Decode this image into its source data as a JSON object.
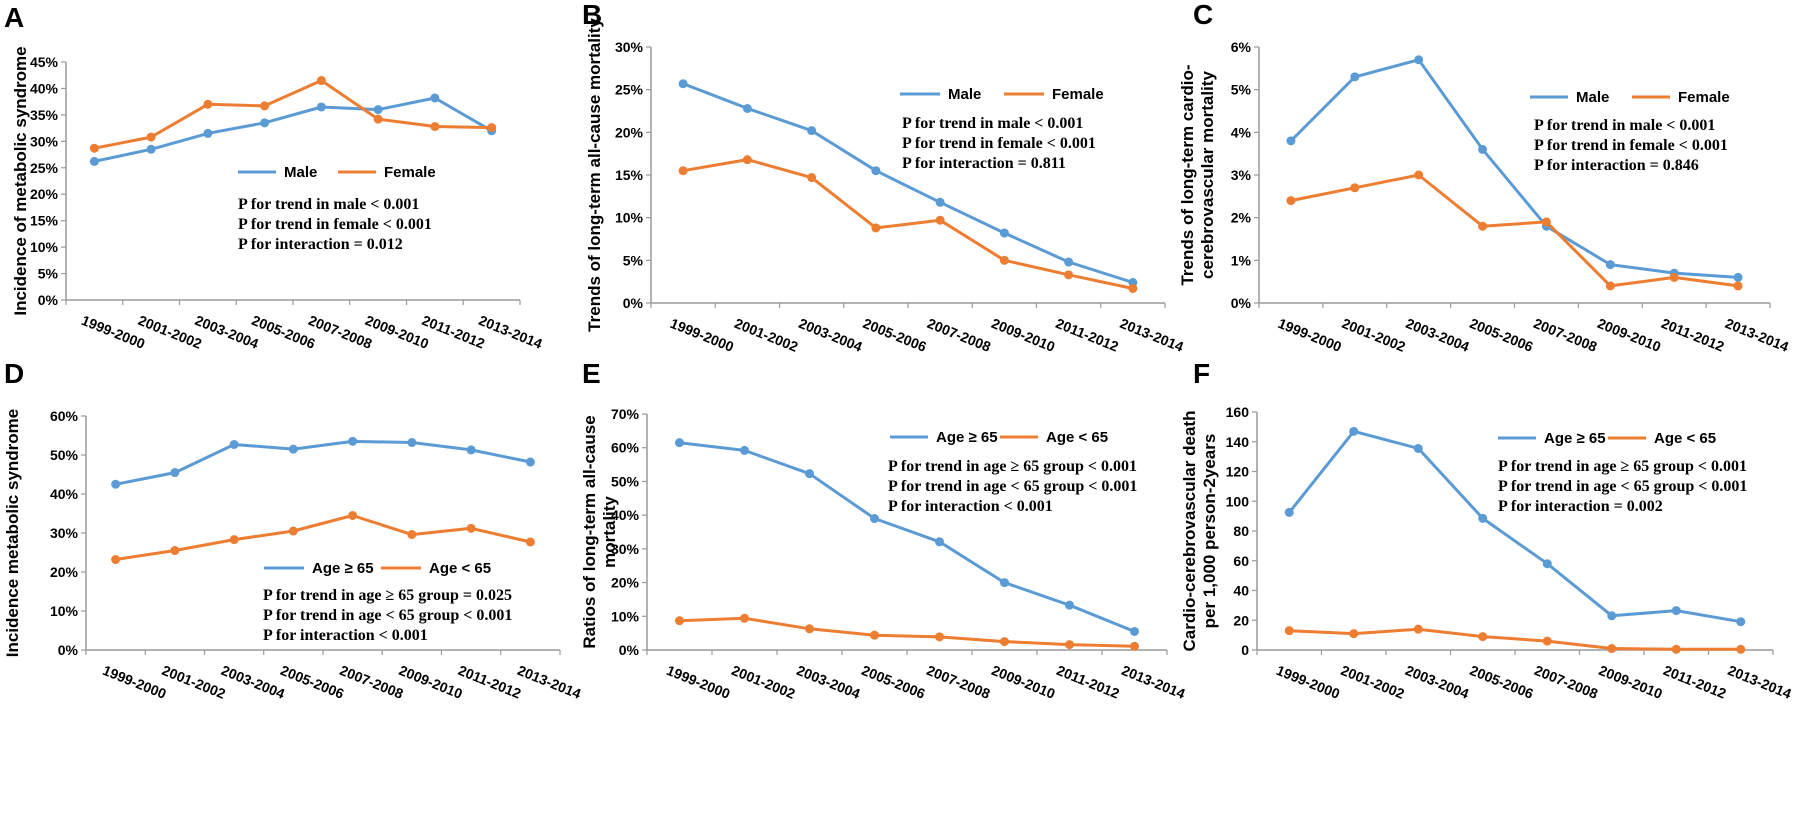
{
  "colors": {
    "series1": "#5b9bd5",
    "series2": "#ed7d31",
    "axis": "#9a9a9a"
  },
  "chart_data": [
    {
      "id": "A",
      "type": "line",
      "ylabel": "Incidence of metabolic syndrome",
      "yticks": [
        "0%",
        "5%",
        "10%",
        "15%",
        "20%",
        "25%",
        "30%",
        "35%",
        "40%",
        "45%"
      ],
      "ylim": [
        0,
        45
      ],
      "categories": [
        "1999-2000",
        "2001-2002",
        "2003-2004",
        "2005-2006",
        "2007-2008",
        "2009-2010",
        "2011-2012",
        "2013-2014"
      ],
      "series": [
        {
          "name": "Male",
          "values": [
            26.2,
            28.5,
            31.5,
            33.5,
            36.5,
            36.0,
            38.2,
            32.0
          ]
        },
        {
          "name": "Female",
          "values": [
            28.7,
            30.8,
            37.0,
            36.7,
            41.5,
            34.2,
            32.8,
            32.6
          ]
        }
      ],
      "notes": [
        "P for trend in male < 0.001",
        "P for trend in female < 0.001",
        "P for interaction = 0.012"
      ]
    },
    {
      "id": "B",
      "type": "line",
      "ylabel": "Trends of long-term all-cause mortality",
      "yticks": [
        "0%",
        "5%",
        "10%",
        "15%",
        "20%",
        "25%",
        "30%"
      ],
      "ylim": [
        0,
        30
      ],
      "categories": [
        "1999-2000",
        "2001-2002",
        "2003-2004",
        "2005-2006",
        "2007-2008",
        "2009-2010",
        "2011-2012",
        "2013-2014"
      ],
      "series": [
        {
          "name": "Male",
          "values": [
            25.7,
            22.8,
            20.2,
            15.5,
            11.8,
            8.2,
            4.8,
            2.4
          ]
        },
        {
          "name": "Female",
          "values": [
            15.5,
            16.8,
            14.7,
            8.8,
            9.7,
            5.0,
            3.3,
            1.7
          ]
        }
      ],
      "notes": [
        "P for trend in male < 0.001",
        "P for trend in female < 0.001",
        "P for interaction = 0.811"
      ]
    },
    {
      "id": "C",
      "type": "line",
      "ylabel": [
        "Trends of long-term cardio-",
        "cerebrovascular mortality"
      ],
      "yticks": [
        "0%",
        "1%",
        "2%",
        "3%",
        "4%",
        "5%",
        "6%"
      ],
      "ylim": [
        0,
        6
      ],
      "categories": [
        "1999-2000",
        "2001-2002",
        "2003-2004",
        "2005-2006",
        "2007-2008",
        "2009-2010",
        "2011-2012",
        "2013-2014"
      ],
      "series": [
        {
          "name": "Male",
          "values": [
            3.8,
            5.3,
            5.7,
            3.6,
            1.8,
            0.9,
            0.7,
            0.6
          ]
        },
        {
          "name": "Female",
          "values": [
            2.4,
            2.7,
            3.0,
            1.8,
            1.9,
            0.4,
            0.6,
            0.4
          ]
        }
      ],
      "notes": [
        "P for trend in male < 0.001",
        "P for trend in female < 0.001",
        "P for interaction = 0.846"
      ]
    },
    {
      "id": "D",
      "type": "line",
      "ylabel": "Incidence metabolic syndrome",
      "yticks": [
        "0%",
        "10%",
        "20%",
        "30%",
        "40%",
        "50%",
        "60%"
      ],
      "ylim": [
        0,
        60
      ],
      "categories": [
        "1999-2000",
        "2001-2002",
        "2003-2004",
        "2005-2006",
        "2007-2008",
        "2009-2010",
        "2011-2012",
        "2013-2014"
      ],
      "series": [
        {
          "name": "Age ≥ 65",
          "values": [
            42.5,
            45.5,
            52.7,
            51.5,
            53.5,
            53.2,
            51.3,
            48.2
          ]
        },
        {
          "name": "Age < 65",
          "values": [
            23.2,
            25.5,
            28.3,
            30.5,
            34.5,
            29.6,
            31.2,
            27.7
          ]
        }
      ],
      "notes": [
        "P for trend in age ≥ 65 group = 0.025",
        "P for trend in age < 65 group < 0.001",
        "P for interaction < 0.001"
      ]
    },
    {
      "id": "E",
      "type": "line",
      "ylabel": [
        "Ratios of long-term all-cause",
        "mortality"
      ],
      "yticks": [
        "0%",
        "10%",
        "20%",
        "30%",
        "40%",
        "50%",
        "60%",
        "70%"
      ],
      "ylim": [
        0,
        70
      ],
      "categories": [
        "1999-2000",
        "2001-2002",
        "2003-2004",
        "2005-2006",
        "2007-2008",
        "2009-2010",
        "2011-2012",
        "2013-2014"
      ],
      "series": [
        {
          "name": "Age ≥ 65",
          "values": [
            61.5,
            59.2,
            52.3,
            39.0,
            32.1,
            20.0,
            13.3,
            5.5
          ]
        },
        {
          "name": "Age < 65",
          "values": [
            8.7,
            9.4,
            6.3,
            4.4,
            3.9,
            2.5,
            1.6,
            1.1
          ]
        }
      ],
      "notes": [
        "P for trend in age ≥ 65 group < 0.001",
        "P for trend in age < 65 group < 0.001",
        "P for interaction < 0.001"
      ]
    },
    {
      "id": "F",
      "type": "line",
      "ylabel": [
        "Cardio-cerebrovascular death",
        "per 1,000 person-2years"
      ],
      "yticks": [
        "0",
        "20",
        "40",
        "60",
        "80",
        "100",
        "120",
        "140",
        "160"
      ],
      "ylim": [
        0,
        160
      ],
      "categories": [
        "1999-2000",
        "2001-2002",
        "2003-2004",
        "2005-2006",
        "2007-2008",
        "2009-2010",
        "2011-2012",
        "2013-2014"
      ],
      "series": [
        {
          "name": "Age ≥ 65",
          "values": [
            92.5,
            147.0,
            135.5,
            88.5,
            58.0,
            23.0,
            26.5,
            19.0
          ]
        },
        {
          "name": "Age < 65",
          "values": [
            13.0,
            11.0,
            14.0,
            9.0,
            6.0,
            1.0,
            0.5,
            0.5
          ]
        }
      ],
      "notes": [
        "P for trend in age ≥ 65 group < 0.001",
        "P for trend in age < 65 group < 0.001",
        "P for interaction = 0.002"
      ]
    }
  ]
}
